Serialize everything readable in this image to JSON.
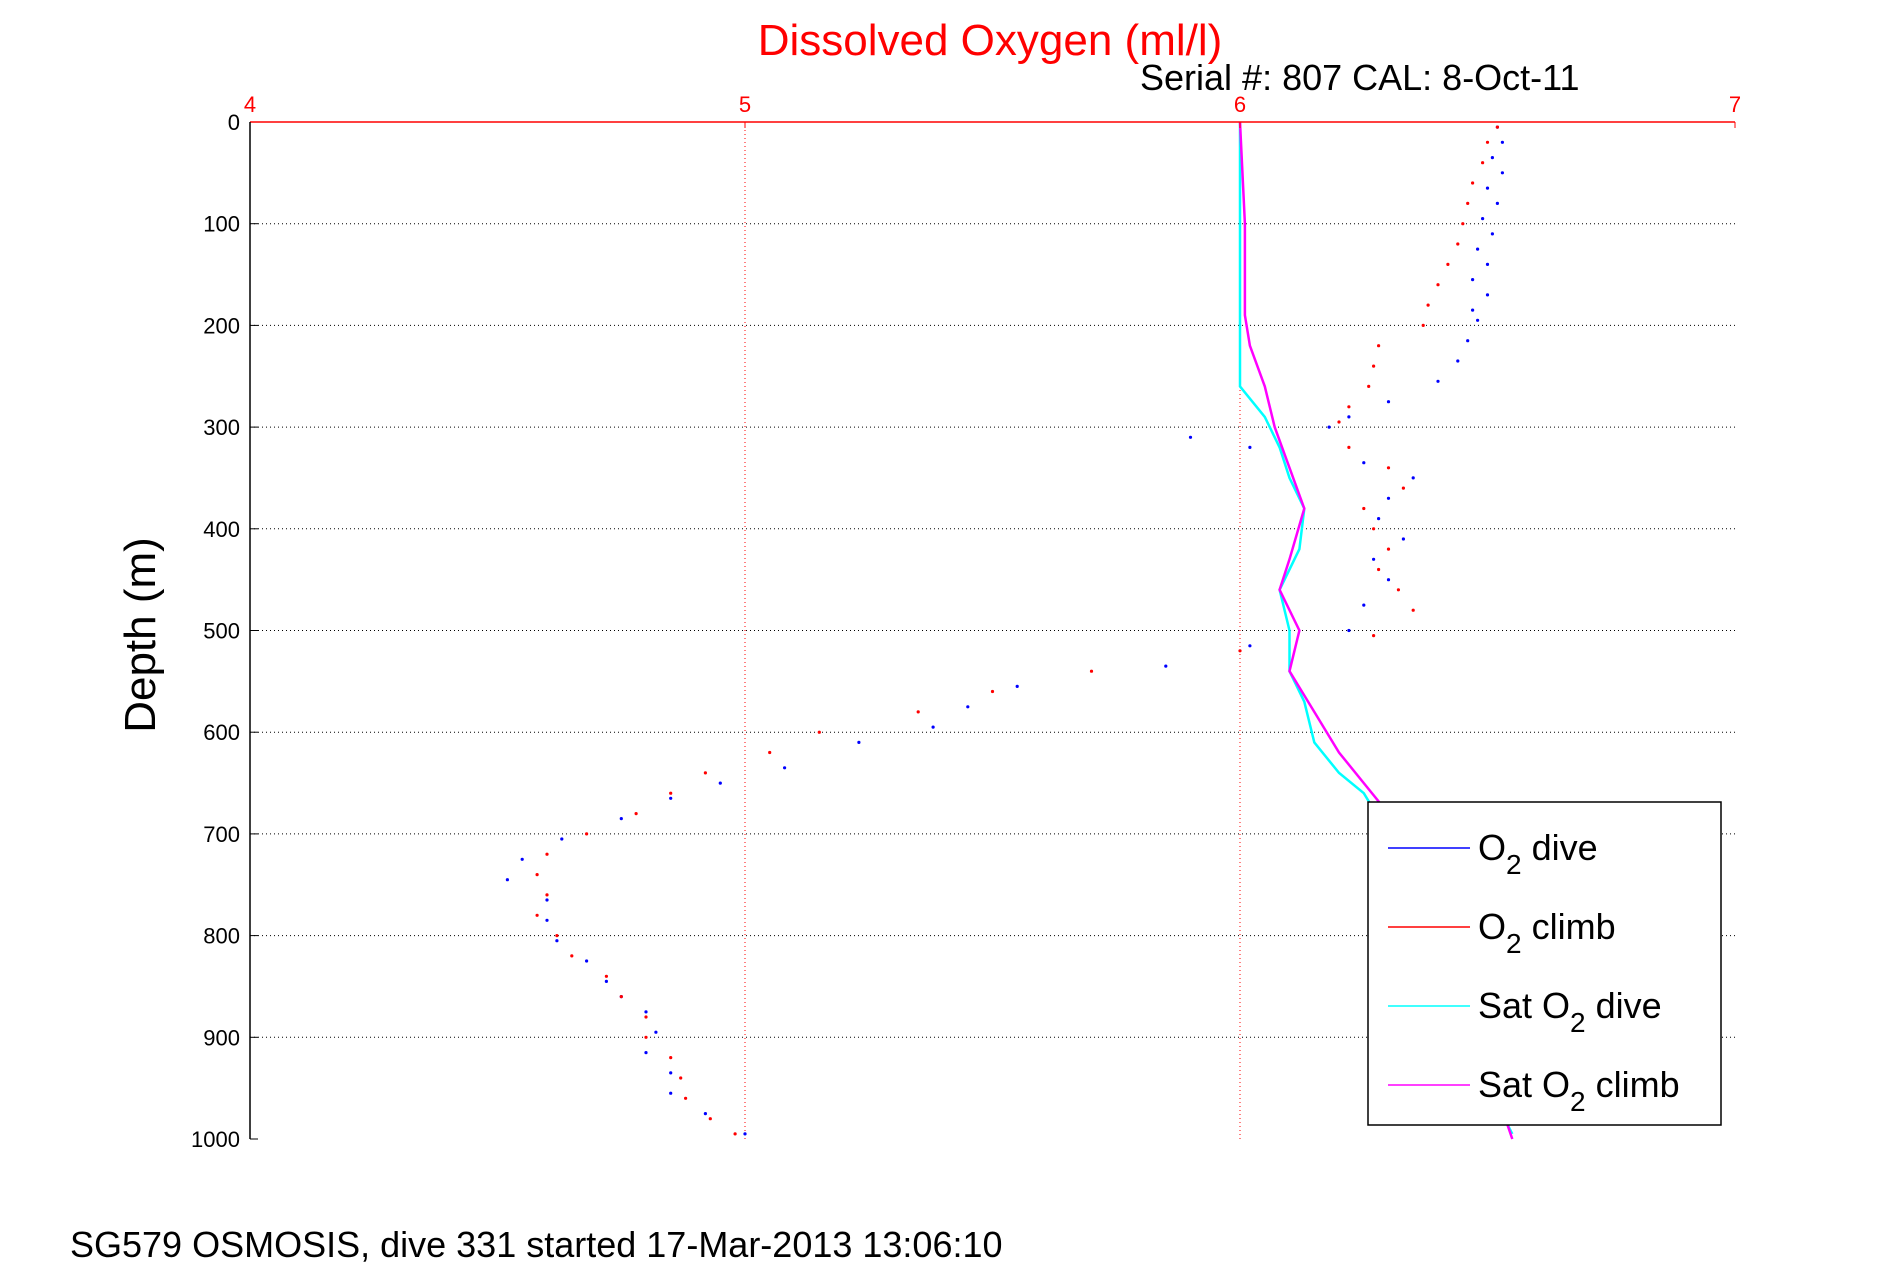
{
  "chart_data": {
    "type": "scatter",
    "title": "Dissolved Oxygen (ml/l)",
    "subtitle": "Serial #: 807  CAL: 8-Oct-11",
    "ylabel": "Depth (m)",
    "footer": "SG579 OSMOSIS, dive 331 started 17-Mar-2013 13:06:10",
    "xlim": [
      4,
      7
    ],
    "ylim": [
      0,
      1000
    ],
    "y_reversed": true,
    "x_axis_position": "top",
    "grid": true,
    "legend_position": "bottom-right",
    "x_ticks": [
      "4",
      "5",
      "6",
      "7"
    ],
    "y_ticks": [
      "0",
      "100",
      "200",
      "300",
      "400",
      "500",
      "600",
      "700",
      "800",
      "900",
      "1000"
    ],
    "colors": {
      "title": "#ff0000",
      "x_axis": "#ff0000",
      "dive": "#0000ff",
      "climb": "#ff0000",
      "sat_dive": "#00ffff",
      "sat_climb": "#ff00ff"
    },
    "series": [
      {
        "key": "o2_dive",
        "name": "O2 dive",
        "label_main": "O",
        "label_sub": "2",
        "label_rest": " dive",
        "style": "points",
        "color": "#0000ff",
        "points": [
          [
            6.52,
            5
          ],
          [
            6.53,
            20
          ],
          [
            6.51,
            35
          ],
          [
            6.53,
            50
          ],
          [
            6.5,
            65
          ],
          [
            6.52,
            80
          ],
          [
            6.49,
            95
          ],
          [
            6.51,
            110
          ],
          [
            6.48,
            125
          ],
          [
            6.5,
            140
          ],
          [
            6.47,
            155
          ],
          [
            6.5,
            170
          ],
          [
            6.47,
            185
          ],
          [
            6.48,
            195
          ],
          [
            6.46,
            215
          ],
          [
            6.44,
            235
          ],
          [
            6.4,
            255
          ],
          [
            6.3,
            275
          ],
          [
            6.22,
            290
          ],
          [
            6.18,
            300
          ],
          [
            5.9,
            310
          ],
          [
            6.02,
            320
          ],
          [
            6.25,
            335
          ],
          [
            6.35,
            350
          ],
          [
            6.3,
            370
          ],
          [
            6.28,
            390
          ],
          [
            6.33,
            410
          ],
          [
            6.27,
            430
          ],
          [
            6.3,
            450
          ],
          [
            6.25,
            475
          ],
          [
            6.22,
            500
          ],
          [
            6.02,
            515
          ],
          [
            5.85,
            535
          ],
          [
            5.55,
            555
          ],
          [
            5.45,
            575
          ],
          [
            5.38,
            595
          ],
          [
            5.23,
            610
          ],
          [
            5.08,
            635
          ],
          [
            4.95,
            650
          ],
          [
            4.85,
            665
          ],
          [
            4.75,
            685
          ],
          [
            4.63,
            705
          ],
          [
            4.55,
            725
          ],
          [
            4.52,
            745
          ],
          [
            4.6,
            765
          ],
          [
            4.6,
            785
          ],
          [
            4.62,
            805
          ],
          [
            4.68,
            825
          ],
          [
            4.72,
            845
          ],
          [
            4.75,
            860
          ],
          [
            4.8,
            875
          ],
          [
            4.82,
            895
          ],
          [
            4.8,
            915
          ],
          [
            4.85,
            935
          ],
          [
            4.85,
            955
          ],
          [
            4.92,
            975
          ],
          [
            5.0,
            995
          ]
        ]
      },
      {
        "key": "o2_climb",
        "name": "O2 climb",
        "label_main": "O",
        "label_sub": "2",
        "label_rest": " climb",
        "style": "points",
        "color": "#ff0000",
        "points": [
          [
            6.52,
            5
          ],
          [
            6.5,
            20
          ],
          [
            6.49,
            40
          ],
          [
            6.47,
            60
          ],
          [
            6.46,
            80
          ],
          [
            6.45,
            100
          ],
          [
            6.44,
            120
          ],
          [
            6.42,
            140
          ],
          [
            6.4,
            160
          ],
          [
            6.38,
            180
          ],
          [
            6.37,
            200
          ],
          [
            6.28,
            220
          ],
          [
            6.27,
            240
          ],
          [
            6.26,
            260
          ],
          [
            6.22,
            280
          ],
          [
            6.2,
            295
          ],
          [
            6.22,
            320
          ],
          [
            6.3,
            340
          ],
          [
            6.33,
            360
          ],
          [
            6.25,
            380
          ],
          [
            6.27,
            400
          ],
          [
            6.3,
            420
          ],
          [
            6.28,
            440
          ],
          [
            6.32,
            460
          ],
          [
            6.35,
            480
          ],
          [
            6.27,
            505
          ],
          [
            6.0,
            520
          ],
          [
            5.7,
            540
          ],
          [
            5.5,
            560
          ],
          [
            5.35,
            580
          ],
          [
            5.15,
            600
          ],
          [
            5.05,
            620
          ],
          [
            4.92,
            640
          ],
          [
            4.85,
            660
          ],
          [
            4.78,
            680
          ],
          [
            4.68,
            700
          ],
          [
            4.6,
            720
          ],
          [
            4.58,
            740
          ],
          [
            4.6,
            760
          ],
          [
            4.58,
            780
          ],
          [
            4.62,
            800
          ],
          [
            4.65,
            820
          ],
          [
            4.72,
            840
          ],
          [
            4.75,
            860
          ],
          [
            4.8,
            880
          ],
          [
            4.8,
            900
          ],
          [
            4.85,
            920
          ],
          [
            4.87,
            940
          ],
          [
            4.88,
            960
          ],
          [
            4.93,
            980
          ],
          [
            4.98,
            995
          ]
        ]
      },
      {
        "key": "sat_dive",
        "name": "Sat O2 dive",
        "label_main": "Sat O",
        "label_sub": "2",
        "label_rest": " dive",
        "style": "line",
        "color": "#00ffff",
        "points": [
          [
            6.0,
            0
          ],
          [
            6.0,
            100
          ],
          [
            6.0,
            200
          ],
          [
            6.0,
            260
          ],
          [
            6.05,
            290
          ],
          [
            6.08,
            320
          ],
          [
            6.1,
            350
          ],
          [
            6.13,
            380
          ],
          [
            6.12,
            420
          ],
          [
            6.08,
            460
          ],
          [
            6.1,
            500
          ],
          [
            6.1,
            540
          ],
          [
            6.13,
            570
          ],
          [
            6.15,
            610
          ],
          [
            6.2,
            640
          ],
          [
            6.25,
            660
          ],
          [
            6.3,
            700
          ],
          [
            6.35,
            780
          ],
          [
            6.4,
            850
          ],
          [
            6.45,
            900
          ],
          [
            6.55,
            995
          ]
        ]
      },
      {
        "key": "sat_climb",
        "name": "Sat O2 climb",
        "label_main": "Sat O",
        "label_sub": "2",
        "label_rest": " climb",
        "style": "line",
        "color": "#ff00ff",
        "points": [
          [
            6.0,
            0
          ],
          [
            6.01,
            100
          ],
          [
            6.01,
            190
          ],
          [
            6.02,
            220
          ],
          [
            6.05,
            260
          ],
          [
            6.07,
            300
          ],
          [
            6.1,
            340
          ],
          [
            6.13,
            380
          ],
          [
            6.1,
            430
          ],
          [
            6.08,
            460
          ],
          [
            6.12,
            500
          ],
          [
            6.1,
            540
          ],
          [
            6.15,
            580
          ],
          [
            6.2,
            620
          ],
          [
            6.25,
            650
          ],
          [
            6.3,
            680
          ],
          [
            6.38,
            750
          ],
          [
            6.42,
            820
          ],
          [
            6.48,
            900
          ],
          [
            6.55,
            1000
          ]
        ]
      }
    ]
  }
}
